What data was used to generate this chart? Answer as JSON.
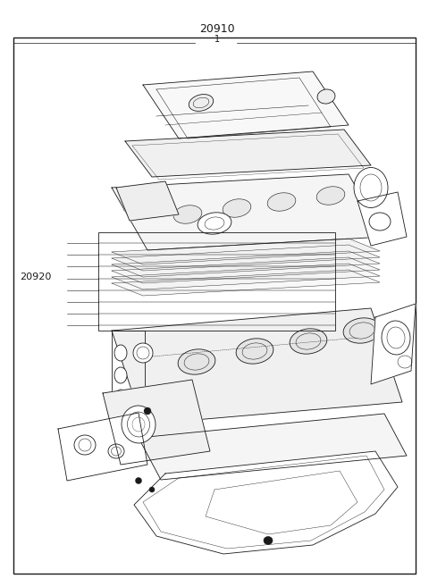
{
  "bg_color": "#ffffff",
  "line_color": "#1a1a1a",
  "fig_width": 4.8,
  "fig_height": 6.57,
  "dpi": 100,
  "label_20910": "20910",
  "label_20910_sub": "1",
  "label_20920": "20920",
  "lw": 0.6
}
